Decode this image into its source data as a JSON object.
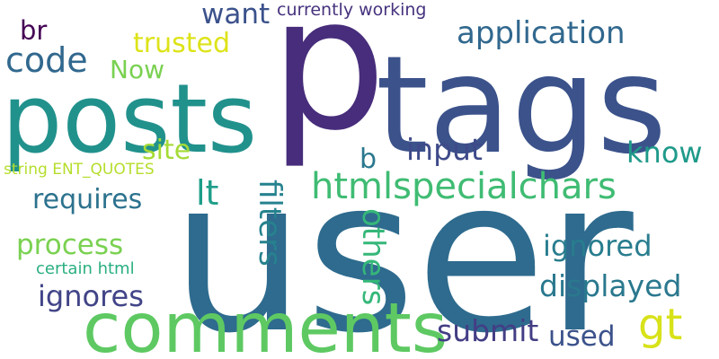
{
  "words": {
    "user": {
      "text": "user",
      "color": "#2E6B8E"
    },
    "p": {
      "text": "p",
      "color": "#472D7B"
    },
    "tags": {
      "text": "tags",
      "color": "#3B528B"
    },
    "posts": {
      "text": "posts",
      "color": "#21918C"
    },
    "comments": {
      "text": "comments",
      "color": "#5EC962"
    },
    "htmlspecialchars": {
      "text": "htmlspecialchars",
      "color": "#3FBC73"
    },
    "code": {
      "text": "code",
      "color": "#31688E"
    },
    "application": {
      "text": "application",
      "color": "#31688E"
    },
    "want": {
      "text": "want",
      "color": "#3B528B"
    },
    "trusted": {
      "text": "trusted",
      "color": "#DDE318"
    },
    "now": {
      "text": "Now",
      "color": "#7AD151"
    },
    "br": {
      "text": "br",
      "color": "#440154"
    },
    "currently_working": {
      "text": "currently working",
      "color": "#46327E"
    },
    "site": {
      "text": "site",
      "color": "#A5DB36"
    },
    "string_ent": {
      "text": "string ENT_QUOTES",
      "color": "#B5DE2B"
    },
    "lt": {
      "text": "lt",
      "color": "#1F9E89"
    },
    "requires": {
      "text": "requires",
      "color": "#2C728E"
    },
    "process": {
      "text": "process",
      "color": "#7AD151"
    },
    "certain_html": {
      "text": "certain html",
      "color": "#29AF7F"
    },
    "ignores": {
      "text": "ignores",
      "color": "#414487"
    },
    "filters": {
      "text": "filters",
      "color": "#26828E"
    },
    "others": {
      "text": "others",
      "color": "#35B779"
    },
    "input": {
      "text": "input",
      "color": "#3E4A89"
    },
    "b": {
      "text": "b",
      "color": "#2A788E"
    },
    "know": {
      "text": "know",
      "color": "#1F9A8A"
    },
    "ignored": {
      "text": "ignored",
      "color": "#287D8E"
    },
    "displayed": {
      "text": "displayed",
      "color": "#2A788E"
    },
    "gt": {
      "text": "gt",
      "color": "#D8E219"
    },
    "submit": {
      "text": "submit",
      "color": "#433E85"
    },
    "used": {
      "text": "used",
      "color": "#3B528B"
    }
  }
}
